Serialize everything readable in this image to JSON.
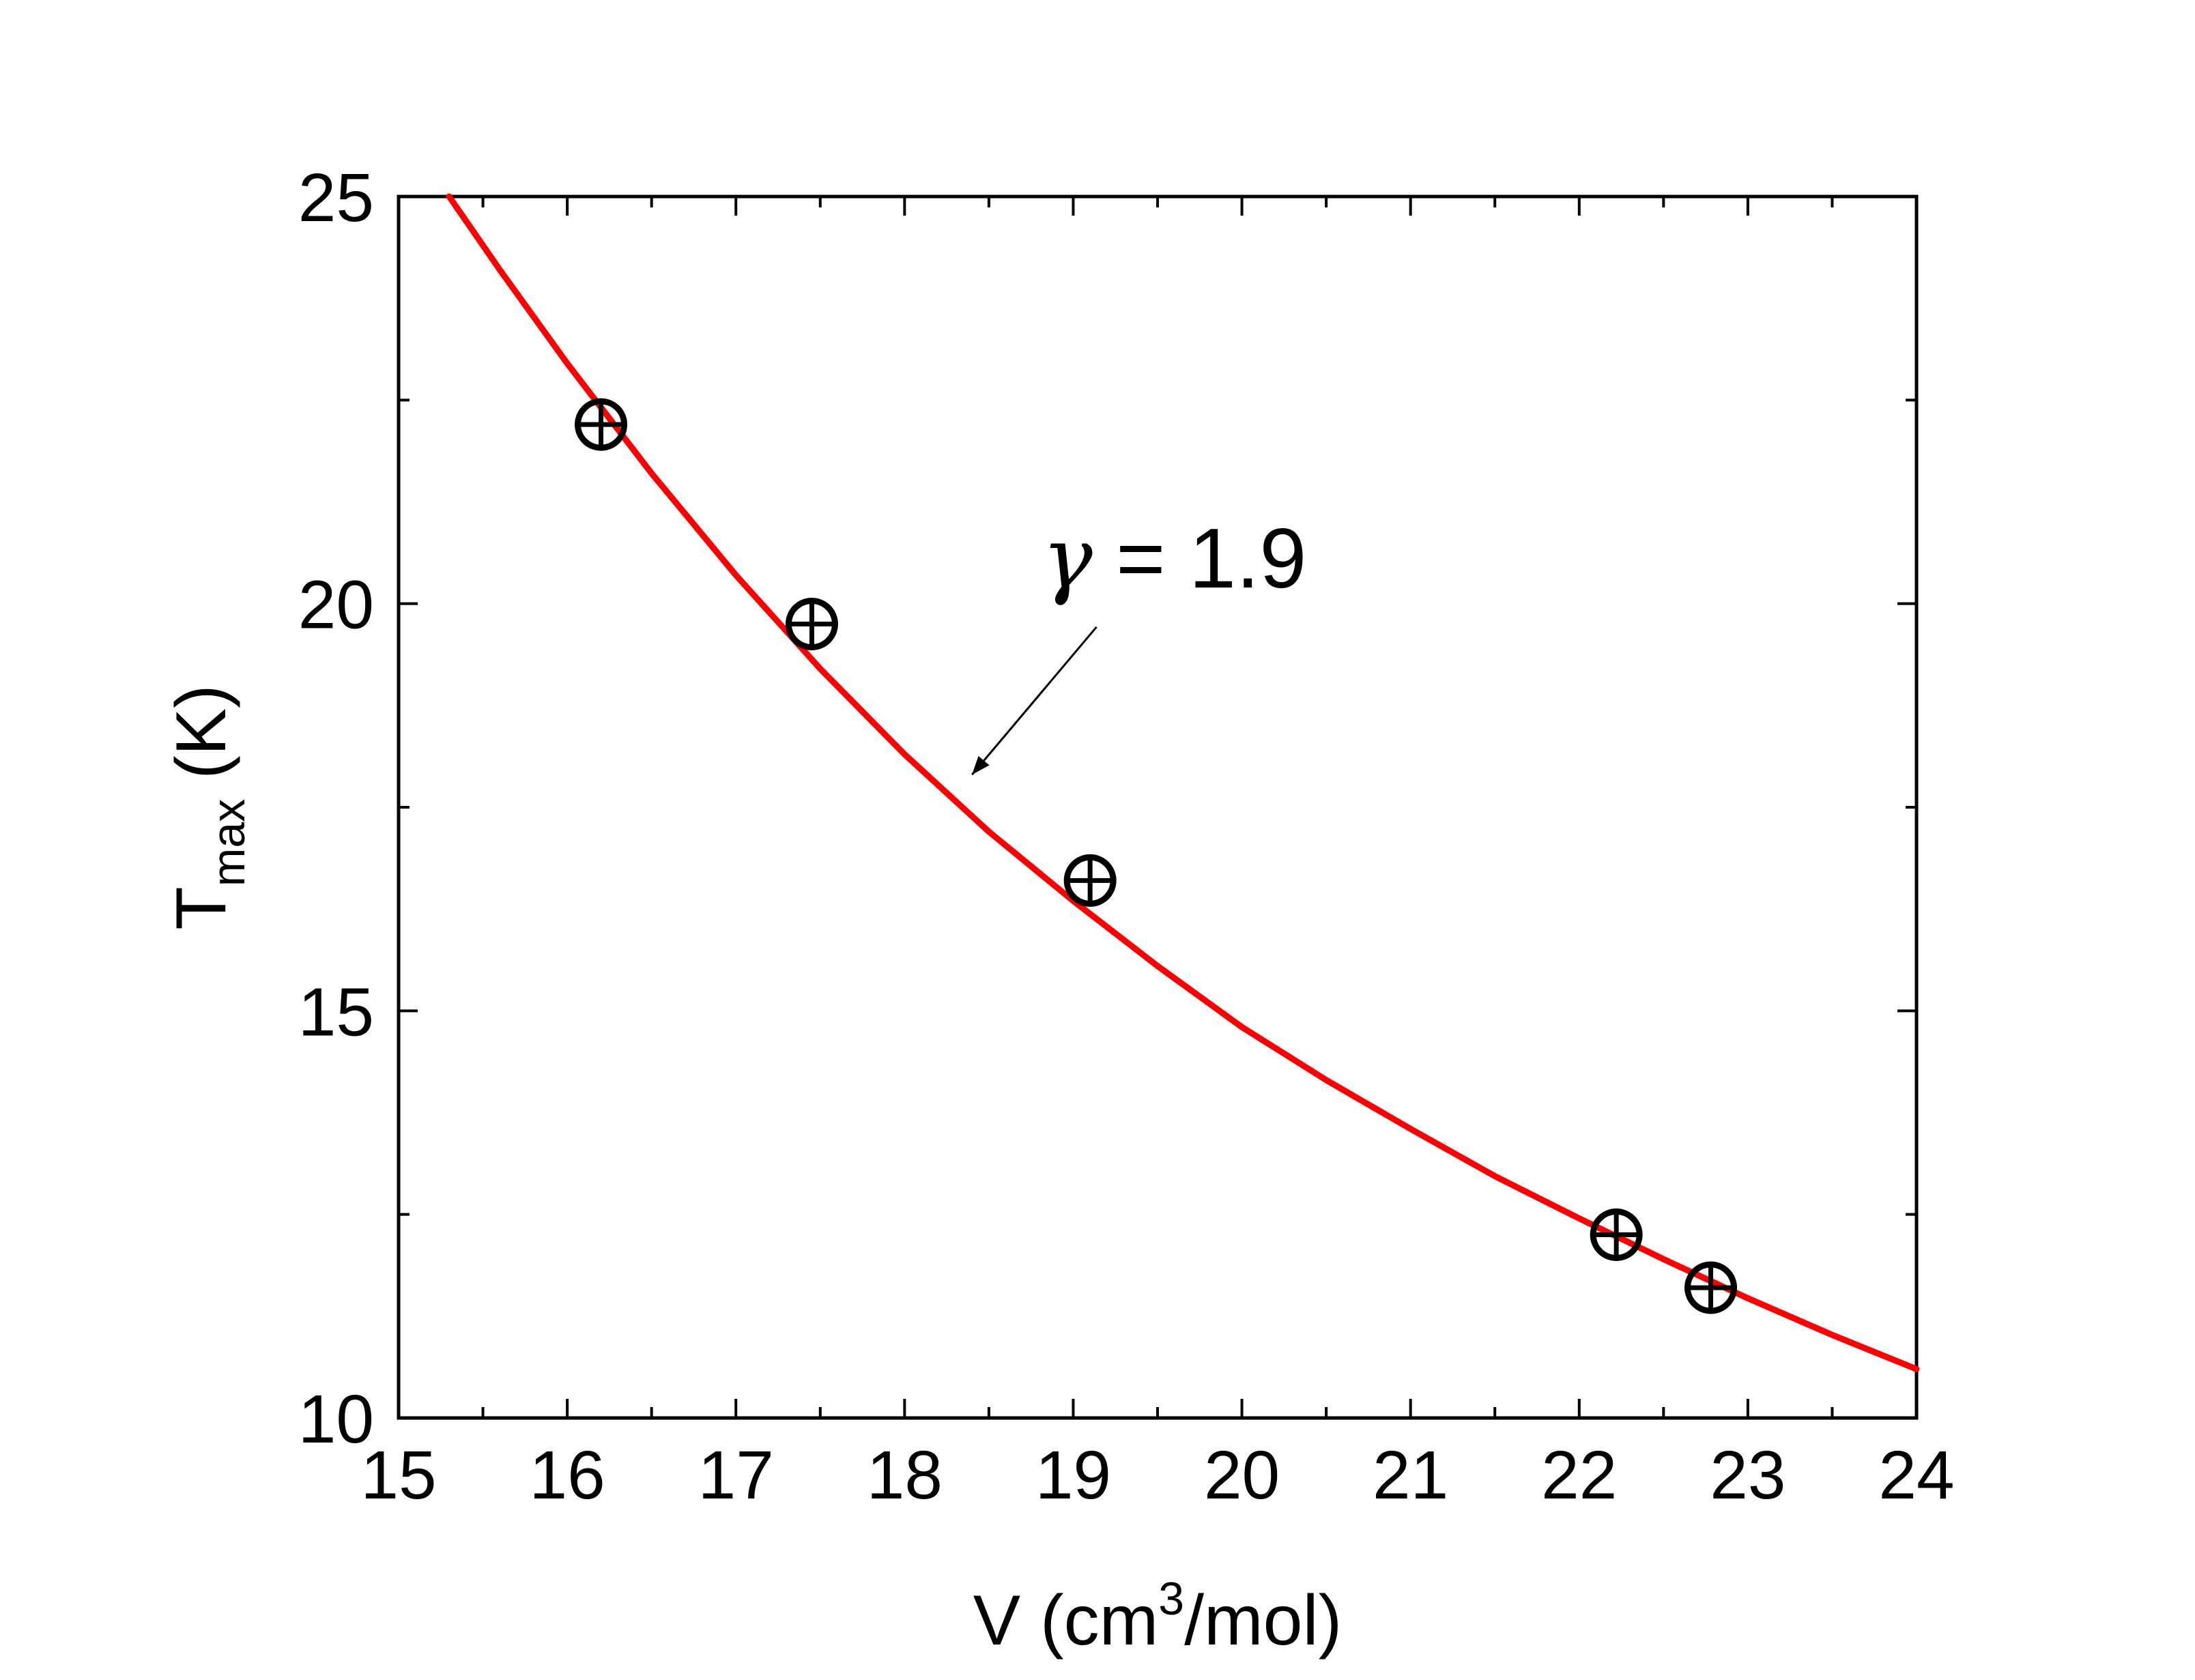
{
  "chart_data": {
    "type": "scatter",
    "title": "",
    "xlabel": "V (cm3/mol)",
    "xlabel_parts": {
      "main": "V (cm",
      "sup": "3",
      "tail": "/mol)"
    },
    "ylabel": "Tmax (K)",
    "ylabel_parts": {
      "main": "T",
      "sub": "max",
      "tail": " (K)"
    },
    "xlim": [
      15,
      24
    ],
    "ylim": [
      10,
      25
    ],
    "xticks": [
      15,
      16,
      17,
      18,
      19,
      20,
      21,
      22,
      23,
      24
    ],
    "yticks": [
      10,
      15,
      20,
      25
    ],
    "y_minor_ticks": [
      12.5,
      17.5,
      22.5
    ],
    "x_minor_ticks": [
      15.5,
      16.5,
      17.5,
      18.5,
      19.5,
      20.5,
      21.5,
      22.5,
      23.5
    ],
    "grid": false,
    "series": [
      {
        "name": "data",
        "kind": "scatter",
        "marker": "circle-plus",
        "color": "#000000",
        "x": [
          16.2,
          17.45,
          19.1,
          22.22,
          22.78
        ],
        "y": [
          22.2,
          19.75,
          16.6,
          12.25,
          11.6
        ]
      },
      {
        "name": "fit",
        "kind": "line",
        "color": "#ff0000",
        "x": [
          15.3,
          15.6,
          16.0,
          16.5,
          17.0,
          17.5,
          18.0,
          18.5,
          19.0,
          19.5,
          20.0,
          20.5,
          21.0,
          21.5,
          22.0,
          22.5,
          23.0,
          23.5,
          24.0
        ],
        "y": [
          25.0,
          24.1,
          22.95,
          21.6,
          20.35,
          19.2,
          18.15,
          17.2,
          16.35,
          15.55,
          14.8,
          14.15,
          13.55,
          12.97,
          12.45,
          11.95,
          11.47,
          11.02,
          10.6
        ]
      }
    ],
    "annotation": {
      "symbol": "γ",
      "text": " = 1.9",
      "arrow_to": {
        "x": 18.4,
        "y": 17.9
      },
      "label_at": {
        "x": 19.3,
        "y": 20.2
      }
    }
  }
}
